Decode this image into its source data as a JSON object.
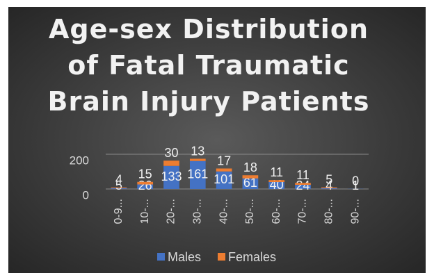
{
  "chart_data": {
    "type": "stacked_bar",
    "title": "Age-sex Distribution of Fatal Traumatic Brain Injury Patients",
    "categories": [
      "0-9...",
      "10-...",
      "20-...",
      "30-...",
      "40-...",
      "50-...",
      "60-...",
      "70-...",
      "80-...",
      "90-..."
    ],
    "series": [
      {
        "name": "Males",
        "color": "#4472c4",
        "values": [
          5,
          26,
          133,
          161,
          101,
          61,
          40,
          24,
          4,
          1
        ]
      },
      {
        "name": "Females",
        "color": "#ed7d31",
        "values": [
          4,
          15,
          30,
          13,
          17,
          18,
          11,
          11,
          5,
          0
        ]
      }
    ],
    "ylim": [
      0,
      200
    ],
    "yticks": [
      0,
      200
    ],
    "grid": true,
    "legend": "bottom"
  }
}
